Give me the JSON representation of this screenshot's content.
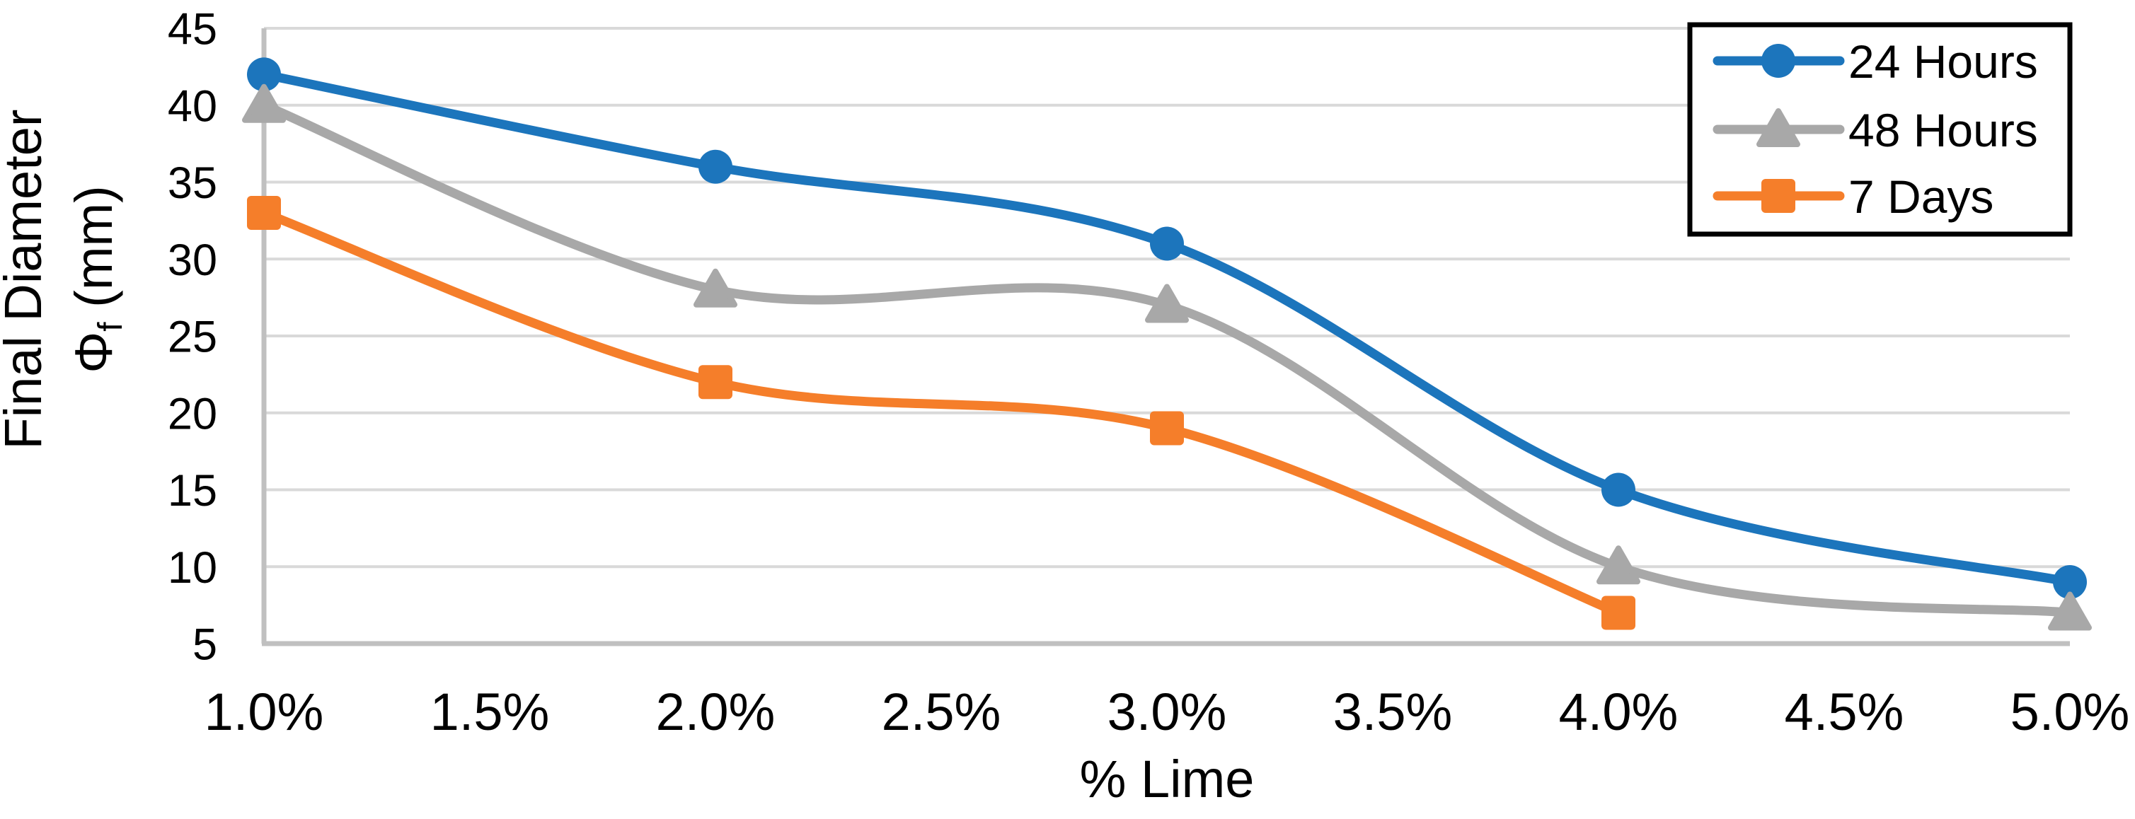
{
  "chart_data": {
    "type": "line",
    "title": "",
    "xlabel": "% Lime",
    "ylabel": "Final Diameter Φf (mm)",
    "ylabel_lines": {
      "line1": "Final Diameter",
      "line2_phi": "Φ",
      "line2_sub": "f",
      "line2_rest": " (mm)"
    },
    "x_tick_labels": [
      "1.0%",
      "1.5%",
      "2.0%",
      "2.5%",
      "3.0%",
      "3.5%",
      "4.0%",
      "4.5%",
      "5.0%"
    ],
    "y_ticks": [
      5,
      10,
      15,
      20,
      25,
      30,
      35,
      40,
      45
    ],
    "ylim": [
      5,
      45
    ],
    "grid": "horizontal",
    "smooth_lines": true,
    "legend_position": "top-right-inside",
    "legend_labels": [
      "24 Hours",
      "48 Hours",
      "7 Days"
    ],
    "series": [
      {
        "name": "24 Hours",
        "marker": "circle",
        "color": "#1C75BC",
        "x": [
          "1.0%",
          "2.0%",
          "3.0%",
          "4.0%",
          "5.0%"
        ],
        "values": [
          42,
          36,
          31,
          15,
          9
        ]
      },
      {
        "name": "48 Hours",
        "marker": "triangle",
        "color": "#A8A8A8",
        "x": [
          "1.0%",
          "2.0%",
          "3.0%",
          "4.0%",
          "5.0%"
        ],
        "values": [
          40,
          28,
          27,
          10,
          7
        ]
      },
      {
        "name": "7 Days",
        "marker": "square",
        "color": "#F57E2A",
        "x": [
          "1.0%",
          "2.0%",
          "3.0%",
          "4.0%"
        ],
        "values": [
          33,
          22,
          19,
          7
        ]
      }
    ],
    "colors": {
      "gridline": "#D9D9D9",
      "axis_line": "#C0C0C0",
      "text": "#000000",
      "legend_border": "#000000",
      "background": "#FFFFFF"
    }
  }
}
